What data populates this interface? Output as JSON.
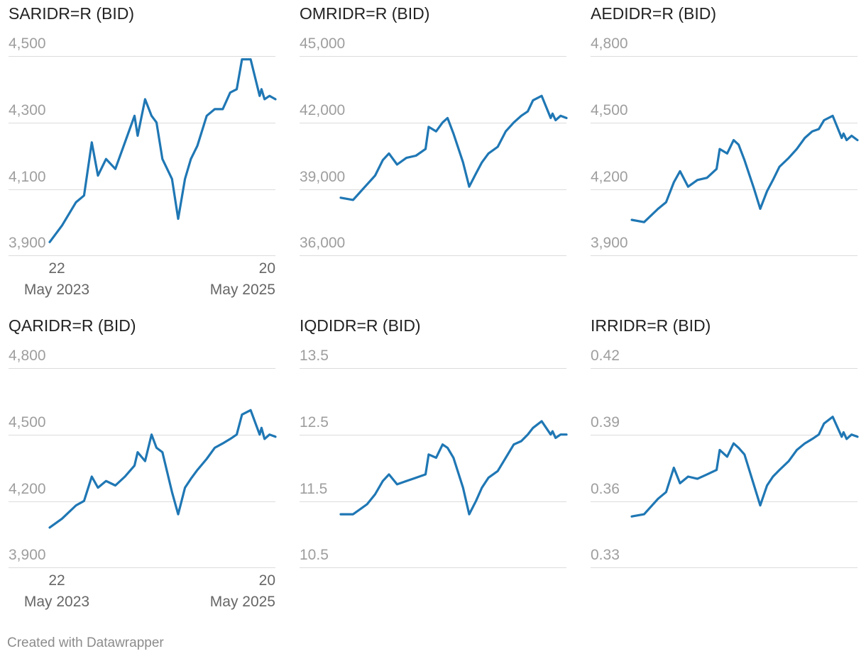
{
  "credit": "Created with Datawrapper",
  "colors": {
    "line": "#1f77b4",
    "grid": "#dcdcdc",
    "tick_text": "#9e9e9e",
    "title": "#222222"
  },
  "x_ticks": [
    {
      "day": "22",
      "month_year": "May 2023"
    },
    {
      "day": "20",
      "month_year": "May 2025"
    }
  ],
  "chart_data": [
    {
      "type": "line",
      "title": "SARIDR=R (BID)",
      "x_range": [
        "2023-05-22",
        "2025-05-20"
      ],
      "ylim": [
        3900,
        4500
      ],
      "y_ticks": [
        "4,500",
        "4,300",
        "4,100",
        "3,900"
      ],
      "y_tick_values": [
        4500,
        4300,
        4100,
        3900
      ],
      "show_x_axis": true,
      "grid": true,
      "x": [
        "2023-05-22",
        "2023-07-01",
        "2023-08-15",
        "2023-09-10",
        "2023-10-05",
        "2023-10-25",
        "2023-11-20",
        "2023-12-20",
        "2024-01-20",
        "2024-02-20",
        "2024-03-01",
        "2024-03-25",
        "2024-04-15",
        "2024-05-01",
        "2024-05-20",
        "2024-06-20",
        "2024-07-10",
        "2024-08-01",
        "2024-08-20",
        "2024-09-10",
        "2024-10-10",
        "2024-11-05",
        "2024-12-01",
        "2024-12-25",
        "2025-01-15",
        "2025-02-01",
        "2025-03-01",
        "2025-03-30",
        "2025-04-05",
        "2025-04-15",
        "2025-05-01",
        "2025-05-20"
      ],
      "values": [
        3940,
        3990,
        4060,
        4080,
        4240,
        4140,
        4190,
        4160,
        4240,
        4320,
        4260,
        4370,
        4320,
        4300,
        4190,
        4130,
        4010,
        4130,
        4190,
        4230,
        4320,
        4340,
        4340,
        4390,
        4400,
        4490,
        4490,
        4380,
        4400,
        4370,
        4380,
        4370
      ]
    },
    {
      "type": "line",
      "title": "OMRIDR=R (BID)",
      "x_range": [
        "2023-05-22",
        "2025-05-20"
      ],
      "ylim": [
        36000,
        45000
      ],
      "y_ticks": [
        "45,000",
        "42,000",
        "39,000",
        "36,000"
      ],
      "y_tick_values": [
        45000,
        42000,
        39000,
        36000
      ],
      "show_x_axis": false,
      "grid": true,
      "x": [
        "2023-05-22",
        "2023-07-01",
        "2023-08-15",
        "2023-09-10",
        "2023-10-05",
        "2023-10-25",
        "2023-11-20",
        "2023-12-20",
        "2024-01-20",
        "2024-02-20",
        "2024-03-01",
        "2024-03-25",
        "2024-04-15",
        "2024-05-01",
        "2024-05-20",
        "2024-06-20",
        "2024-07-10",
        "2024-08-01",
        "2024-08-20",
        "2024-09-10",
        "2024-10-10",
        "2024-11-05",
        "2024-12-01",
        "2024-12-25",
        "2025-01-15",
        "2025-02-01",
        "2025-03-01",
        "2025-03-30",
        "2025-04-05",
        "2025-04-15",
        "2025-05-01",
        "2025-05-20"
      ],
      "values": [
        38600,
        38500,
        39200,
        39600,
        40300,
        40600,
        40100,
        40400,
        40500,
        40800,
        41800,
        41600,
        42000,
        42200,
        41500,
        40200,
        39100,
        39700,
        40200,
        40600,
        40900,
        41600,
        42000,
        42300,
        42500,
        43000,
        43200,
        42200,
        42400,
        42100,
        42300,
        42200
      ]
    },
    {
      "type": "line",
      "title": "AEDIDR=R (BID)",
      "x_range": [
        "2023-05-22",
        "2025-05-20"
      ],
      "ylim": [
        3900,
        4800
      ],
      "y_ticks": [
        "4,800",
        "4,500",
        "4,200",
        "3,900"
      ],
      "y_tick_values": [
        4800,
        4500,
        4200,
        3900
      ],
      "show_x_axis": false,
      "grid": true,
      "x": [
        "2023-05-22",
        "2023-07-01",
        "2023-08-15",
        "2023-09-10",
        "2023-10-05",
        "2023-10-25",
        "2023-11-20",
        "2023-12-20",
        "2024-01-20",
        "2024-02-20",
        "2024-03-01",
        "2024-03-25",
        "2024-04-15",
        "2024-05-01",
        "2024-05-20",
        "2024-06-20",
        "2024-07-10",
        "2024-08-01",
        "2024-08-20",
        "2024-09-10",
        "2024-10-10",
        "2024-11-05",
        "2024-12-01",
        "2024-12-25",
        "2025-01-15",
        "2025-02-01",
        "2025-03-01",
        "2025-03-30",
        "2025-04-05",
        "2025-04-15",
        "2025-05-01",
        "2025-05-20"
      ],
      "values": [
        4060,
        4050,
        4110,
        4140,
        4230,
        4280,
        4210,
        4240,
        4250,
        4290,
        4380,
        4360,
        4420,
        4400,
        4330,
        4200,
        4110,
        4190,
        4240,
        4300,
        4340,
        4380,
        4430,
        4460,
        4470,
        4510,
        4530,
        4430,
        4450,
        4420,
        4440,
        4420
      ]
    },
    {
      "type": "line",
      "title": "QARIDR=R (BID)",
      "x_range": [
        "2023-05-22",
        "2025-05-20"
      ],
      "ylim": [
        3900,
        4800
      ],
      "y_ticks": [
        "4,800",
        "4,500",
        "4,200",
        "3,900"
      ],
      "y_tick_values": [
        4800,
        4500,
        4200,
        3900
      ],
      "show_x_axis": true,
      "grid": true,
      "x": [
        "2023-05-22",
        "2023-07-01",
        "2023-08-15",
        "2023-09-10",
        "2023-10-05",
        "2023-10-25",
        "2023-11-20",
        "2023-12-20",
        "2024-01-20",
        "2024-02-20",
        "2024-03-01",
        "2024-03-25",
        "2024-04-15",
        "2024-05-01",
        "2024-05-20",
        "2024-06-20",
        "2024-07-10",
        "2024-08-01",
        "2024-08-20",
        "2024-09-10",
        "2024-10-10",
        "2024-11-05",
        "2024-12-01",
        "2024-12-25",
        "2025-01-15",
        "2025-02-01",
        "2025-03-01",
        "2025-03-30",
        "2025-04-05",
        "2025-04-15",
        "2025-05-01",
        "2025-05-20"
      ],
      "values": [
        4080,
        4120,
        4180,
        4200,
        4310,
        4260,
        4290,
        4270,
        4310,
        4360,
        4420,
        4380,
        4500,
        4440,
        4420,
        4240,
        4140,
        4260,
        4300,
        4340,
        4390,
        4440,
        4460,
        4480,
        4500,
        4590,
        4610,
        4500,
        4530,
        4480,
        4500,
        4490
      ]
    },
    {
      "type": "line",
      "title": "IQDIDR=R (BID)",
      "x_range": [
        "2023-05-22",
        "2025-05-20"
      ],
      "ylim": [
        10.5,
        13.5
      ],
      "y_ticks": [
        "13.5",
        "12.5",
        "11.5",
        "10.5"
      ],
      "y_tick_values": [
        13.5,
        12.5,
        11.5,
        10.5
      ],
      "show_x_axis": false,
      "grid": true,
      "x": [
        "2023-05-22",
        "2023-07-01",
        "2023-08-15",
        "2023-09-10",
        "2023-10-05",
        "2023-10-25",
        "2023-11-20",
        "2023-12-20",
        "2024-01-20",
        "2024-02-20",
        "2024-03-01",
        "2024-03-25",
        "2024-04-15",
        "2024-05-01",
        "2024-05-20",
        "2024-06-20",
        "2024-07-10",
        "2024-08-01",
        "2024-08-20",
        "2024-09-10",
        "2024-10-10",
        "2024-11-05",
        "2024-12-01",
        "2024-12-25",
        "2025-01-15",
        "2025-02-01",
        "2025-03-01",
        "2025-03-30",
        "2025-04-05",
        "2025-04-15",
        "2025-05-01",
        "2025-05-20"
      ],
      "values": [
        11.3,
        11.3,
        11.45,
        11.6,
        11.8,
        11.9,
        11.75,
        11.8,
        11.85,
        11.9,
        12.2,
        12.15,
        12.35,
        12.3,
        12.15,
        11.7,
        11.3,
        11.5,
        11.7,
        11.85,
        11.95,
        12.15,
        12.35,
        12.4,
        12.5,
        12.6,
        12.7,
        12.5,
        12.55,
        12.45,
        12.5,
        12.5
      ]
    },
    {
      "type": "line",
      "title": "IRRIDR=R (BID)",
      "x_range": [
        "2023-05-22",
        "2025-05-20"
      ],
      "ylim": [
        0.33,
        0.42
      ],
      "y_ticks": [
        "0.42",
        "0.39",
        "0.36",
        "0.33"
      ],
      "y_tick_values": [
        0.42,
        0.39,
        0.36,
        0.33
      ],
      "show_x_axis": false,
      "grid": true,
      "x": [
        "2023-05-22",
        "2023-07-01",
        "2023-08-15",
        "2023-09-10",
        "2023-10-05",
        "2023-10-25",
        "2023-11-20",
        "2023-12-20",
        "2024-01-20",
        "2024-02-20",
        "2024-03-01",
        "2024-03-25",
        "2024-04-15",
        "2024-05-01",
        "2024-05-20",
        "2024-06-20",
        "2024-07-10",
        "2024-08-01",
        "2024-08-20",
        "2024-09-10",
        "2024-10-10",
        "2024-11-05",
        "2024-12-01",
        "2024-12-25",
        "2025-01-15",
        "2025-02-01",
        "2025-03-01",
        "2025-03-30",
        "2025-04-05",
        "2025-04-15",
        "2025-05-01",
        "2025-05-20"
      ],
      "values": [
        0.353,
        0.354,
        0.361,
        0.364,
        0.375,
        0.368,
        0.371,
        0.37,
        0.372,
        0.374,
        0.383,
        0.38,
        0.386,
        0.384,
        0.381,
        0.367,
        0.358,
        0.367,
        0.371,
        0.374,
        0.378,
        0.383,
        0.386,
        0.388,
        0.39,
        0.395,
        0.398,
        0.389,
        0.391,
        0.388,
        0.39,
        0.389
      ]
    }
  ]
}
